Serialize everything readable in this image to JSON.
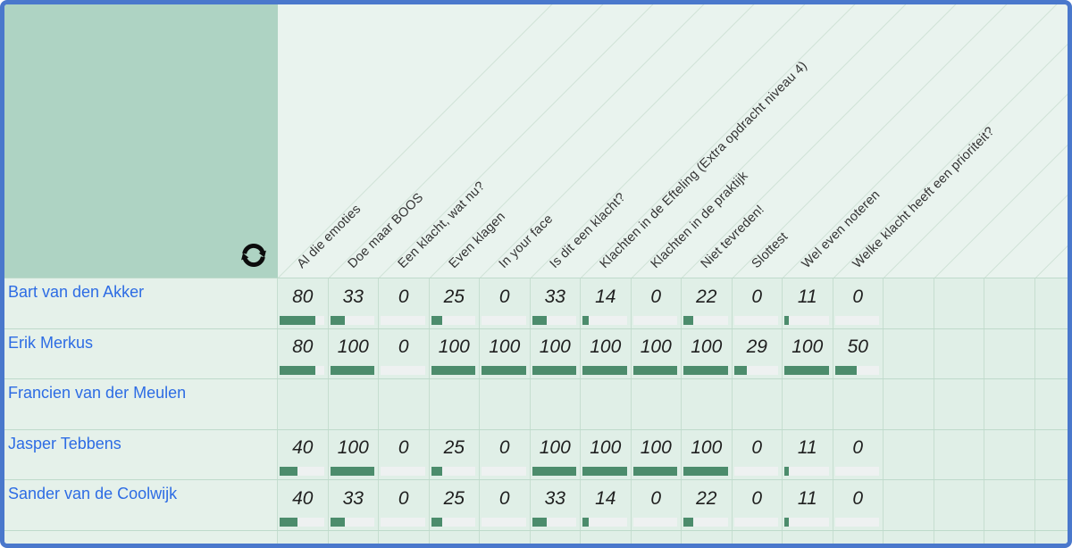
{
  "window": {
    "type": "score-matrix",
    "border_color": "#4a78cc"
  },
  "corner": {
    "icon": "refresh"
  },
  "colors": {
    "border": "#4a78cc",
    "corner": "#aed3c3",
    "header_bg": "#e9f3ee",
    "header_text": "#333333",
    "diag_line": "#cfe2d6",
    "row_bg": "#e0efe7",
    "name_cell_bg": "#e5f1ea",
    "grid_line": "#c6ded0",
    "row_line": "#bedacb",
    "bar_track": "#eef1f1",
    "bar_fill": "#4c8c6c",
    "link_text": "#2d6ce4",
    "value_text": "#1f1f1f"
  },
  "matrix": {
    "column_headers": [
      "Al die emoties",
      "Doe maar BOOS",
      "Een klacht, wat nu?",
      "Even klagen",
      "In your face",
      "Is dit een klacht?",
      "Klachten in de Efteling (Extra opdracht niveau 4)",
      "Klachten in de praktijk",
      "Niet tevreden!",
      "Slottest",
      "Wel even noteren",
      "Welke klacht heeft een prioriteit?"
    ],
    "rows": [
      {
        "name": "Bart van den Akker",
        "scores": [
          80,
          33,
          0,
          25,
          0,
          33,
          14,
          0,
          22,
          0,
          11,
          0
        ]
      },
      {
        "name": "Erik Merkus",
        "scores": [
          80,
          100,
          0,
          100,
          100,
          100,
          100,
          100,
          100,
          29,
          100,
          50
        ]
      },
      {
        "name": "Francien van der Meulen",
        "scores": []
      },
      {
        "name": "Jasper Tebbens",
        "scores": [
          40,
          100,
          0,
          25,
          0,
          100,
          100,
          100,
          100,
          0,
          11,
          0
        ]
      },
      {
        "name": "Sander van de Coolwijk",
        "scores": [
          40,
          33,
          0,
          25,
          0,
          33,
          14,
          0,
          22,
          0,
          11,
          0
        ]
      }
    ]
  }
}
